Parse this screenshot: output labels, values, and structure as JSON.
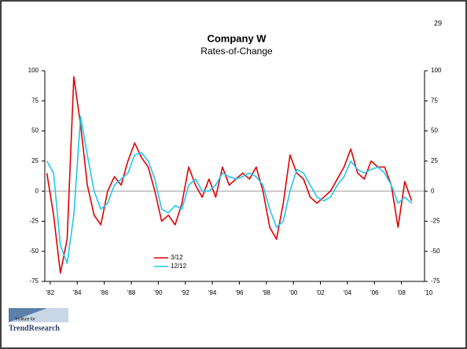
{
  "page_number": "29",
  "logo": {
    "tagline": "Institute for",
    "name": "TrendResearch"
  },
  "chart_data": {
    "type": "line",
    "title": "Company W",
    "subtitle": "Rates-of-Change",
    "x": [
      1981.75,
      1982.25,
      1982.75,
      1983.25,
      1983.75,
      1984.25,
      1984.75,
      1985.25,
      1985.75,
      1986.25,
      1986.75,
      1987.25,
      1987.75,
      1988.25,
      1988.75,
      1989.25,
      1989.75,
      1990.25,
      1990.75,
      1991.25,
      1991.75,
      1992.25,
      1992.75,
      1993.25,
      1993.75,
      1994.25,
      1994.75,
      1995.25,
      1995.75,
      1996.25,
      1996.75,
      1997.25,
      1997.75,
      1998.25,
      1998.75,
      1999.25,
      1999.75,
      2000.25,
      2000.75,
      2001.25,
      2001.75,
      2002.25,
      2002.75,
      2003.25,
      2003.75,
      2004.25,
      2004.75,
      2005.25,
      2005.75,
      2006.25,
      2006.75,
      2007.25,
      2007.75,
      2008.25,
      2008.75
    ],
    "series": [
      {
        "name": "3/12",
        "color": "#e00000",
        "values": [
          15,
          -20,
          -68,
          -40,
          95,
          55,
          5,
          -20,
          -28,
          0,
          12,
          5,
          25,
          40,
          28,
          20,
          0,
          -25,
          -20,
          -28,
          -10,
          20,
          5,
          -5,
          10,
          -5,
          20,
          5,
          10,
          15,
          10,
          20,
          0,
          -30,
          -40,
          -10,
          30,
          15,
          10,
          -5,
          -10,
          -5,
          0,
          10,
          20,
          35,
          15,
          10,
          25,
          20,
          20,
          5,
          -30,
          8,
          -8
        ]
      },
      {
        "name": "12/12",
        "color": "#1ec8f0",
        "values": [
          25,
          15,
          -45,
          -60,
          -20,
          62,
          30,
          0,
          -15,
          -10,
          5,
          10,
          15,
          30,
          32,
          25,
          10,
          -15,
          -18,
          -12,
          -15,
          5,
          10,
          0,
          0,
          5,
          15,
          12,
          10,
          12,
          15,
          12,
          5,
          -15,
          -30,
          -25,
          0,
          18,
          15,
          5,
          -5,
          -8,
          -5,
          5,
          12,
          25,
          18,
          15,
          18,
          20,
          15,
          5,
          -10,
          -5,
          -10
        ]
      }
    ],
    "xlim": [
      1981.6,
      2010
    ],
    "xticks": [
      {
        "value": 1982,
        "label": "'82"
      },
      {
        "value": 1984,
        "label": "'84"
      },
      {
        "value": 1986,
        "label": "'86"
      },
      {
        "value": 1988,
        "label": "'88"
      },
      {
        "value": 1990,
        "label": "'90"
      },
      {
        "value": 1992,
        "label": "'92"
      },
      {
        "value": 1994,
        "label": "'94"
      },
      {
        "value": 1996,
        "label": "'96"
      },
      {
        "value": 1998,
        "label": "'98"
      },
      {
        "value": 2000,
        "label": "'00"
      },
      {
        "value": 2002,
        "label": "'02"
      },
      {
        "value": 2004,
        "label": "'04"
      },
      {
        "value": 2006,
        "label": "'06"
      },
      {
        "value": 2008,
        "label": "'08"
      },
      {
        "value": 2010,
        "label": "'10"
      }
    ],
    "ylim": [
      -75,
      100
    ],
    "yticks": [
      -75,
      -50,
      -25,
      0,
      25,
      50,
      75,
      100
    ],
    "zero_line": true,
    "legend": "lower-left"
  }
}
